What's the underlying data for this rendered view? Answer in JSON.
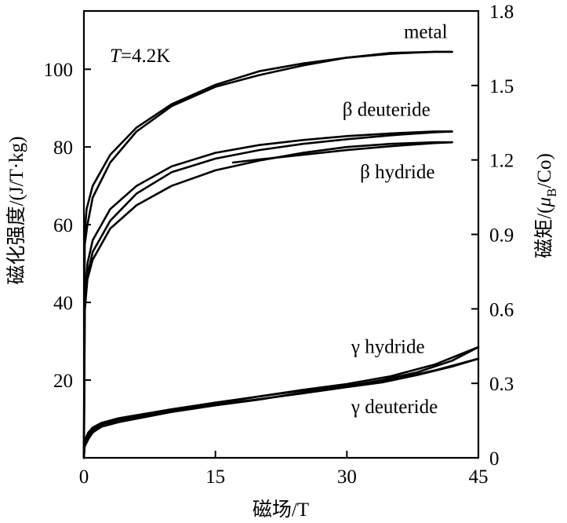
{
  "chart_data": {
    "type": "line",
    "annotation": "T=4.2K",
    "annotation_parts": [
      "T",
      "=4.2K"
    ],
    "xlabel": "磁场/T",
    "ylabel_left": "磁化强度/(J/T·kg)",
    "ylabel_right_parts": [
      "磁矩/(",
      "μ",
      "B",
      "/Co)"
    ],
    "xlim": [
      0,
      45
    ],
    "ylim_left": [
      0,
      115
    ],
    "ylim_right": [
      0,
      1.8
    ],
    "x_ticks": [
      "0",
      "15",
      "30",
      "45"
    ],
    "y_left_ticks": [
      "20",
      "40",
      "60",
      "80",
      "100"
    ],
    "y_right_ticks": [
      "0",
      "0.3",
      "0.6",
      "0.9",
      "1.2",
      "1.5",
      "1.8"
    ],
    "grid": false,
    "series": [
      {
        "name": "metal",
        "label_x": 36.5,
        "label_y": 108,
        "up": [
          [
            0,
            0
          ],
          [
            0.1,
            58
          ],
          [
            0.3,
            64
          ],
          [
            1,
            70
          ],
          [
            3,
            78
          ],
          [
            6,
            85
          ],
          [
            10,
            91
          ],
          [
            15,
            96
          ],
          [
            20,
            99.5
          ],
          [
            25,
            101.5
          ],
          [
            30,
            103
          ],
          [
            35,
            104
          ],
          [
            40,
            104.5
          ],
          [
            42,
            104.5
          ]
        ],
        "down": [
          [
            42,
            104.5
          ],
          [
            40,
            104.5
          ],
          [
            35,
            104.2
          ],
          [
            30,
            103
          ],
          [
            25,
            101
          ],
          [
            20,
            98.5
          ],
          [
            15,
            95.5
          ],
          [
            10,
            90.5
          ],
          [
            6,
            84
          ],
          [
            3,
            76
          ],
          [
            1,
            67
          ],
          [
            0.4,
            60
          ],
          [
            0.1,
            55
          ]
        ]
      },
      {
        "name": "β deuteride",
        "label_x": 29.5,
        "label_y": 88,
        "up": [
          [
            0,
            0
          ],
          [
            0.1,
            40
          ],
          [
            0.4,
            50
          ],
          [
            1,
            56
          ],
          [
            3,
            64
          ],
          [
            6,
            70
          ],
          [
            10,
            75
          ],
          [
            15,
            78.5
          ],
          [
            20,
            80.5
          ],
          [
            25,
            81.8
          ],
          [
            30,
            82.8
          ],
          [
            35,
            83.5
          ],
          [
            40,
            84
          ],
          [
            42,
            84
          ]
        ],
        "down": [
          [
            42,
            84
          ],
          [
            40,
            83.8
          ],
          [
            35,
            83
          ],
          [
            30,
            82
          ],
          [
            25,
            80.8
          ],
          [
            20,
            79.2
          ],
          [
            15,
            77
          ],
          [
            10,
            73.5
          ],
          [
            6,
            68
          ],
          [
            3,
            61
          ],
          [
            1,
            53
          ],
          [
            0.3,
            46
          ],
          [
            0.1,
            42
          ]
        ]
      },
      {
        "name": "β hydride",
        "label_x": 31.5,
        "label_y": 72,
        "up": [
          [
            0,
            0
          ],
          [
            0.1,
            38
          ],
          [
            0.4,
            46
          ],
          [
            1,
            51
          ],
          [
            3,
            59
          ],
          [
            6,
            65
          ],
          [
            10,
            70
          ],
          [
            15,
            74
          ],
          [
            20,
            76.5
          ],
          [
            25,
            78.5
          ],
          [
            30,
            80
          ],
          [
            35,
            80.8
          ],
          [
            40,
            81.2
          ],
          [
            42,
            81.2
          ]
        ],
        "down": [
          [
            42,
            81.2
          ],
          [
            40,
            81
          ],
          [
            35,
            80.2
          ],
          [
            30,
            79.2
          ],
          [
            25,
            78
          ],
          [
            20,
            76.8
          ],
          [
            17,
            76
          ]
        ]
      },
      {
        "name": "γ hydride",
        "label_x": 30.5,
        "label_y": 27,
        "up": [
          [
            0,
            0
          ],
          [
            0.1,
            3.5
          ],
          [
            0.5,
            5.5
          ],
          [
            1,
            7
          ],
          [
            2,
            8.5
          ],
          [
            4,
            10
          ],
          [
            10,
            12.2
          ],
          [
            15,
            14
          ],
          [
            20,
            15.8
          ],
          [
            25,
            17.5
          ],
          [
            30,
            19
          ],
          [
            35,
            21
          ],
          [
            40,
            24
          ],
          [
            45,
            28.5
          ]
        ],
        "down": [
          [
            45,
            28.5
          ],
          [
            42,
            25
          ],
          [
            38,
            22
          ],
          [
            34,
            20
          ],
          [
            30,
            18.5
          ],
          [
            25,
            16.8
          ],
          [
            20,
            15
          ],
          [
            15,
            13.5
          ],
          [
            10,
            11.8
          ],
          [
            4,
            9.2
          ],
          [
            2,
            8
          ],
          [
            1,
            6.5
          ],
          [
            0.5,
            4.8
          ],
          [
            0.1,
            3
          ]
        ]
      },
      {
        "name": "γ deuteride",
        "label_x": 30.5,
        "label_y": 11.5,
        "up": [
          [
            0,
            0
          ],
          [
            0.1,
            4.5
          ],
          [
            0.5,
            6.5
          ],
          [
            1,
            7.8
          ],
          [
            2,
            9
          ],
          [
            4,
            10.2
          ],
          [
            10,
            12.5
          ],
          [
            15,
            14.2
          ],
          [
            20,
            15.8
          ],
          [
            25,
            17.3
          ],
          [
            30,
            18.6
          ],
          [
            35,
            20
          ],
          [
            40,
            22.5
          ],
          [
            45,
            25.5
          ]
        ],
        "down": [
          [
            45,
            25.5
          ],
          [
            42,
            23.5
          ],
          [
            38,
            21.3
          ],
          [
            34,
            19.4
          ],
          [
            30,
            18.2
          ],
          [
            25,
            16.6
          ],
          [
            20,
            15.1
          ],
          [
            15,
            13.7
          ],
          [
            10,
            12
          ],
          [
            4,
            9.6
          ],
          [
            2,
            8.6
          ],
          [
            1,
            7.2
          ],
          [
            0.5,
            5.8
          ],
          [
            0.1,
            4
          ]
        ]
      }
    ]
  }
}
